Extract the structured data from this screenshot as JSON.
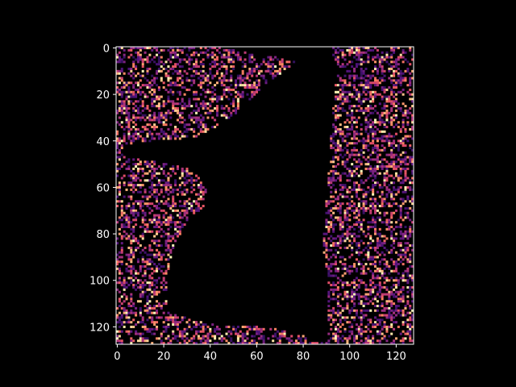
{
  "chart_data": {
    "type": "heatmap",
    "title": "",
    "xlabel": "",
    "ylabel": "",
    "colormap": "magma",
    "background_color": "#000000",
    "foreground_color": "#ffffff",
    "image_size": [
      128,
      128
    ],
    "xlim": [
      -0.5,
      127.5
    ],
    "ylim": [
      127.5,
      -0.5
    ],
    "y_inverted": true,
    "xticks": [
      0,
      20,
      40,
      60,
      80,
      100,
      120
    ],
    "yticks": [
      0,
      20,
      40,
      60,
      80,
      100,
      120
    ],
    "grid": false,
    "colorbar": false,
    "description_of_values": "sparse noise intensities (mostly dark purple with scattered bright orange/yellow pixels) everywhere except a black (zero) silhouette region in the center",
    "zero_region_polygon": [
      [
        42,
        0
      ],
      [
        92,
        0
      ],
      [
        95,
        8
      ],
      [
        94,
        20
      ],
      [
        93,
        30
      ],
      [
        92,
        45
      ],
      [
        91,
        60
      ],
      [
        90,
        72
      ],
      [
        89,
        85
      ],
      [
        91,
        100
      ],
      [
        91,
        112
      ],
      [
        91,
        127
      ],
      [
        84,
        127
      ],
      [
        80,
        124
      ],
      [
        72,
        122
      ],
      [
        60,
        120
      ],
      [
        45,
        120
      ],
      [
        35,
        118
      ],
      [
        25,
        115
      ],
      [
        22,
        108
      ],
      [
        22,
        98
      ],
      [
        24,
        88
      ],
      [
        28,
        80
      ],
      [
        32,
        74
      ],
      [
        38,
        68
      ],
      [
        40,
        62
      ],
      [
        36,
        56
      ],
      [
        30,
        52
      ],
      [
        20,
        50
      ],
      [
        10,
        48
      ],
      [
        3,
        47
      ],
      [
        3,
        42
      ],
      [
        12,
        41
      ],
      [
        22,
        40
      ],
      [
        34,
        39
      ],
      [
        44,
        34
      ],
      [
        55,
        26
      ],
      [
        62,
        18
      ],
      [
        70,
        12
      ],
      [
        78,
        6
      ]
    ],
    "bright_region_density": 0.6,
    "seed": 7
  }
}
